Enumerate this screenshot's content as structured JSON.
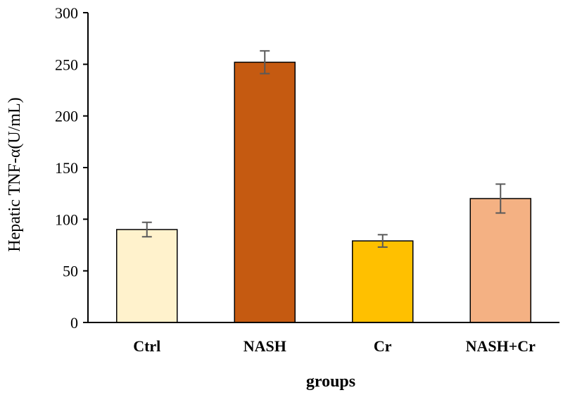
{
  "chart_data": {
    "type": "bar",
    "title": "",
    "xlabel": "groups",
    "ylabel": "Hepatic TNF-α(U/mL)",
    "ylim": [
      0,
      300
    ],
    "yticks": [
      0,
      50,
      100,
      150,
      200,
      250,
      300
    ],
    "categories": [
      "Ctrl",
      "NASH",
      "Cr",
      "NASH+Cr"
    ],
    "values": [
      90,
      252,
      79,
      120
    ],
    "errors": [
      7,
      11,
      6,
      14
    ],
    "bar_colors": [
      "#FFF2CC",
      "#C55A11",
      "#FFC000",
      "#F4B183"
    ],
    "grid": false,
    "legend": "none"
  }
}
